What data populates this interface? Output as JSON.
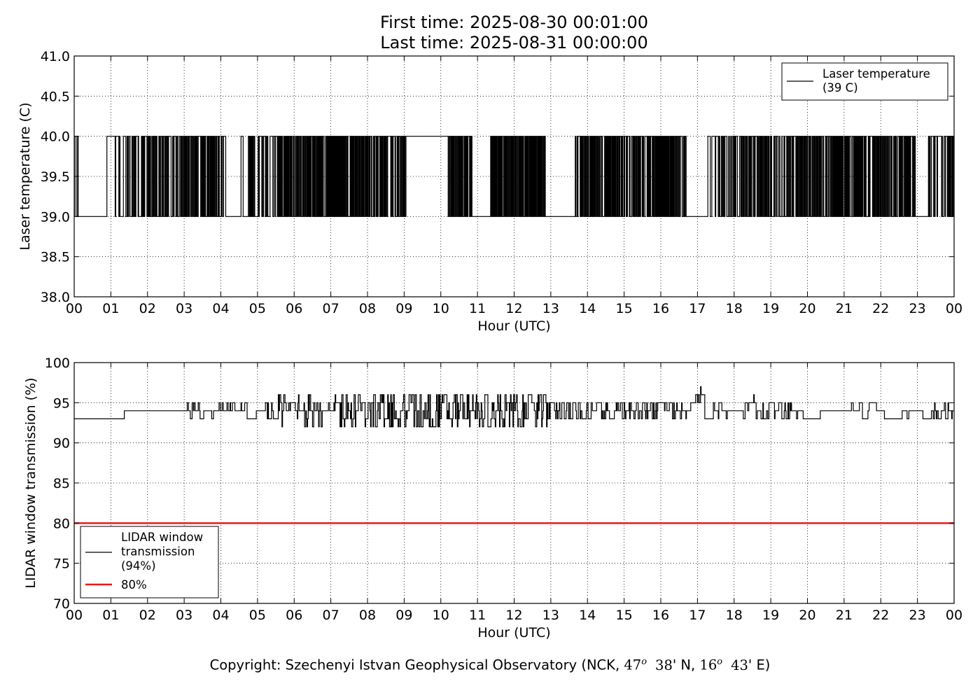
{
  "title_lines": [
    "First time: 2025-08-30 00:01:00",
    "Last time: 2025-08-31 00:00:00"
  ],
  "copyright": {
    "prefix": "Copyright: Szechenyi Istvan Geophysical Observatory (NCK, ",
    "lat_value": "47",
    "degree_mark": "o",
    "lat_minutes": "38",
    "lat_suffix": "' N, ",
    "lon_value": "16",
    "lon_minutes": "43",
    "lon_suffix": "' E)"
  },
  "chart_data": [
    {
      "type": "line",
      "xlabel": "Hour (UTC)",
      "ylabel": "Laser temperature (C)",
      "x_tick_labels": [
        "00",
        "01",
        "02",
        "03",
        "04",
        "05",
        "06",
        "07",
        "08",
        "09",
        "10",
        "11",
        "12",
        "13",
        "14",
        "15",
        "16",
        "17",
        "18",
        "19",
        "20",
        "21",
        "22",
        "23",
        "00"
      ],
      "xlim": [
        0,
        24
      ],
      "ylim": [
        38.0,
        41.0
      ],
      "y_ticks": [
        38.0,
        38.5,
        39.0,
        39.5,
        40.0,
        40.5,
        41.0
      ],
      "y_tick_labels": [
        "38.0",
        "38.5",
        "39.0",
        "39.5",
        "40.0",
        "40.5",
        "41.0"
      ],
      "grid": true,
      "legend_position": "top-right",
      "series": [
        {
          "legend_lines": [
            "Laser temperature",
            "(39 C)"
          ],
          "color": "#000000",
          "data_note": "values switch between 39 and 40 C",
          "intervals": [
            {
              "start": 0.0,
              "end": 0.12,
              "mode": "toggle",
              "density": 0.5
            },
            {
              "start": 0.12,
              "end": 0.85,
              "mode": "low"
            },
            {
              "start": 0.85,
              "end": 1.4,
              "mode": "toggle",
              "density": 0.15
            },
            {
              "start": 1.4,
              "end": 3.0,
              "mode": "toggle",
              "density": 0.45
            },
            {
              "start": 3.0,
              "end": 3.95,
              "mode": "toggle",
              "density": 0.6
            },
            {
              "start": 3.95,
              "end": 4.2,
              "mode": "toggle",
              "density": 0.2
            },
            {
              "start": 4.2,
              "end": 4.55,
              "mode": "low"
            },
            {
              "start": 4.55,
              "end": 5.55,
              "mode": "toggle",
              "density": 0.3
            },
            {
              "start": 5.55,
              "end": 7.4,
              "mode": "toggle",
              "density": 0.7
            },
            {
              "start": 7.4,
              "end": 9.05,
              "mode": "toggle",
              "density": 0.55
            },
            {
              "start": 9.05,
              "end": 10.2,
              "mode": "high"
            },
            {
              "start": 10.2,
              "end": 10.85,
              "mode": "toggle",
              "density": 0.6
            },
            {
              "start": 10.85,
              "end": 11.35,
              "mode": "low"
            },
            {
              "start": 11.35,
              "end": 12.85,
              "mode": "toggle",
              "density": 0.7
            },
            {
              "start": 12.85,
              "end": 13.65,
              "mode": "low"
            },
            {
              "start": 13.65,
              "end": 14.05,
              "mode": "toggle",
              "density": 0.3
            },
            {
              "start": 14.05,
              "end": 16.4,
              "mode": "toggle",
              "density": 0.6
            },
            {
              "start": 16.4,
              "end": 16.7,
              "mode": "toggle",
              "density": 0.3
            },
            {
              "start": 16.7,
              "end": 17.25,
              "mode": "low"
            },
            {
              "start": 17.25,
              "end": 18.0,
              "mode": "toggle",
              "density": 0.25
            },
            {
              "start": 18.0,
              "end": 20.8,
              "mode": "toggle",
              "density": 0.5
            },
            {
              "start": 20.8,
              "end": 21.9,
              "mode": "toggle",
              "density": 0.6
            },
            {
              "start": 21.9,
              "end": 22.95,
              "mode": "toggle",
              "density": 0.5
            },
            {
              "start": 22.95,
              "end": 23.3,
              "mode": "low"
            },
            {
              "start": 23.3,
              "end": 24.0,
              "mode": "toggle",
              "density": 0.35
            }
          ]
        }
      ]
    },
    {
      "type": "line",
      "xlabel": "Hour (UTC)",
      "ylabel": "LIDAR window transmission (%)",
      "x_tick_labels": [
        "00",
        "01",
        "02",
        "03",
        "04",
        "05",
        "06",
        "07",
        "08",
        "09",
        "10",
        "11",
        "12",
        "13",
        "14",
        "15",
        "16",
        "17",
        "18",
        "19",
        "20",
        "21",
        "22",
        "23",
        "00"
      ],
      "xlim": [
        0,
        24
      ],
      "ylim": [
        70,
        100
      ],
      "y_ticks": [
        70,
        75,
        80,
        85,
        90,
        95,
        100
      ],
      "y_tick_labels": [
        "70",
        "75",
        "80",
        "85",
        "90",
        "95",
        "100"
      ],
      "grid": true,
      "legend_position": "bottom-left",
      "series": [
        {
          "legend_lines": [
            "LIDAR window",
            "transmission",
            "(94%)"
          ],
          "color": "#000000",
          "segments": [
            {
              "start": 0.0,
              "end": 3.0,
              "base": 93,
              "jitter": 1,
              "prob": 0.04
            },
            {
              "start": 3.0,
              "end": 4.5,
              "base": 93.5,
              "jitter": 1,
              "prob": 0.5
            },
            {
              "start": 4.5,
              "end": 5.5,
              "base": 94,
              "jitter": 1,
              "prob": 0.5
            },
            {
              "start": 5.5,
              "end": 8.0,
              "base": 93.5,
              "jitter": 2,
              "prob": 0.6
            },
            {
              "start": 8.0,
              "end": 12.9,
              "base": 93.5,
              "jitter": 2.5,
              "prob": 0.7
            },
            {
              "start": 12.9,
              "end": 16.8,
              "base": 94,
              "jitter": 1.5,
              "prob": 0.5
            },
            {
              "start": 16.8,
              "end": 17.2,
              "base": 95.5,
              "jitter": 1,
              "prob": 0.5
            },
            {
              "start": 17.2,
              "end": 18.3,
              "base": 94,
              "jitter": 1,
              "prob": 0.3
            },
            {
              "start": 18.3,
              "end": 18.6,
              "base": 95,
              "jitter": 1,
              "prob": 0.5
            },
            {
              "start": 18.6,
              "end": 19.8,
              "base": 93.5,
              "jitter": 1,
              "prob": 0.5
            },
            {
              "start": 19.8,
              "end": 23.4,
              "base": 94,
              "jitter": 1,
              "prob": 0.1
            },
            {
              "start": 23.4,
              "end": 24.0,
              "base": 94,
              "jitter": 1.5,
              "prob": 0.5
            }
          ]
        },
        {
          "legend_lines": [
            "80%"
          ],
          "color": "#e41a1c",
          "x": [
            0,
            24
          ],
          "values": [
            80,
            80
          ]
        }
      ]
    }
  ]
}
